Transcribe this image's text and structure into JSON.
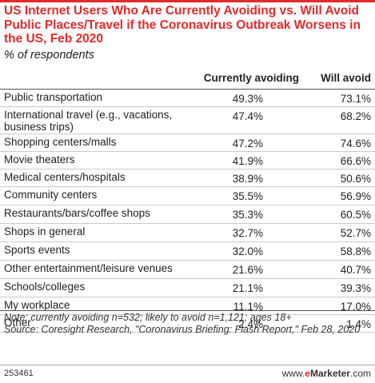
{
  "chart_data": {
    "type": "table",
    "title": "US Internet Users Who Are Currently Avoiding vs. Will Avoid Public Places/Travel if the Coronavirus Outbreak Worsens in the US, Feb 2020",
    "subtitle": "% of respondents",
    "columns": [
      "Currently avoiding",
      "Will avoid"
    ],
    "rows": [
      {
        "label": "Public transportation",
        "currently": "49.3%",
        "will": "73.1%"
      },
      {
        "label": "International travel (e.g., vacations, business trips)",
        "currently": "47.4%",
        "will": "68.2%"
      },
      {
        "label": "Shopping centers/malls",
        "currently": "47.2%",
        "will": "74.6%"
      },
      {
        "label": "Movie theaters",
        "currently": "41.9%",
        "will": "66.6%"
      },
      {
        "label": "Medical centers/hospitals",
        "currently": "38.9%",
        "will": "50.6%"
      },
      {
        "label": "Community centers",
        "currently": "35.5%",
        "will": "56.9%"
      },
      {
        "label": "Restaurants/bars/coffee shops",
        "currently": "35.3%",
        "will": "60.5%"
      },
      {
        "label": "Shops in general",
        "currently": "32.7%",
        "will": "52.7%"
      },
      {
        "label": "Sports events",
        "currently": "32.0%",
        "will": "58.8%"
      },
      {
        "label": "Other entertainment/leisure venues",
        "currently": "21.6%",
        "will": "40.7%"
      },
      {
        "label": "Schools/colleges",
        "currently": "21.1%",
        "will": "39.3%"
      },
      {
        "label": "My workplace",
        "currently": "11.1%",
        "will": "17.0%"
      },
      {
        "label": "Other",
        "currently": "2.4%",
        "will": "1.4%"
      }
    ],
    "note": "Note: currently avoiding n=532; likely to avoid n=1,121; ages 18+",
    "source": "Source: Coresight Research, \"Coronavirus Briefing: Flash Report,\" Feb 28, 2020"
  },
  "footer": {
    "chart_id": "253461",
    "brand_prefix": "www.",
    "brand_e": "e",
    "brand_name": "Marketer",
    "brand_suffix": ".com"
  },
  "colors": {
    "accent": "#e32a2a",
    "rule": "#c9c9c9"
  }
}
